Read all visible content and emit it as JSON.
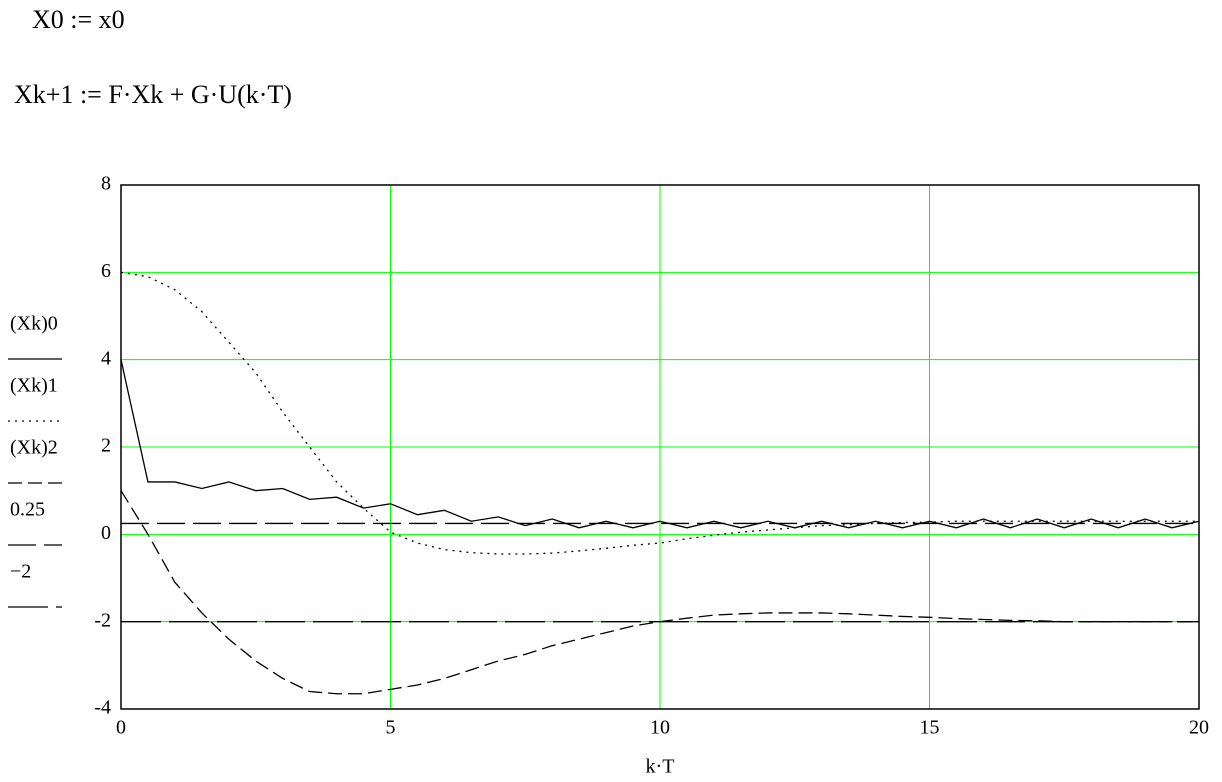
{
  "equations": [
    "X0 := x0",
    "Xk+1 := F·Xk + G·U(k·T)"
  ],
  "chart_data": {
    "type": "line",
    "xlabel": "k·T",
    "x": [
      0,
      0.5,
      1,
      1.5,
      2,
      2.5,
      3,
      3.5,
      4,
      4.5,
      5,
      5.5,
      6,
      6.5,
      7,
      7.5,
      8,
      8.5,
      9,
      9.5,
      10,
      10.5,
      11,
      11.5,
      12,
      12.5,
      13,
      13.5,
      14,
      14.5,
      15,
      15.5,
      16,
      16.5,
      17,
      17.5,
      18,
      18.5,
      19,
      19.5,
      20
    ],
    "xlim": [
      0,
      20
    ],
    "xticks": [
      0,
      5,
      10,
      15,
      20
    ],
    "ylim": [
      -4,
      8
    ],
    "yticks": [
      -4,
      -2,
      0,
      2,
      4,
      6,
      8
    ],
    "grid": true,
    "grid_color": "#00ff00",
    "series": [
      {
        "name": "(Xk)0",
        "color": "#000000",
        "dash": "none",
        "values": [
          4,
          1.2,
          1.2,
          1.05,
          1.2,
          1.0,
          1.05,
          0.8,
          0.85,
          0.6,
          0.7,
          0.45,
          0.55,
          0.3,
          0.4,
          0.2,
          0.35,
          0.15,
          0.3,
          0.15,
          0.3,
          0.15,
          0.3,
          0.15,
          0.3,
          0.15,
          0.3,
          0.15,
          0.3,
          0.15,
          0.3,
          0.15,
          0.35,
          0.15,
          0.35,
          0.15,
          0.35,
          0.15,
          0.35,
          0.15,
          0.3
        ]
      },
      {
        "name": "(Xk)1",
        "color": "#000000",
        "dash": "2,5",
        "values": [
          6,
          5.9,
          5.6,
          5.1,
          4.4,
          3.7,
          2.8,
          2.0,
          1.2,
          0.6,
          0.05,
          -0.2,
          -0.35,
          -0.42,
          -0.45,
          -0.45,
          -0.43,
          -0.38,
          -0.32,
          -0.25,
          -0.2,
          -0.1,
          -0.02,
          0.05,
          0.1,
          0.15,
          0.2,
          0.22,
          0.25,
          0.27,
          0.28,
          0.3,
          0.3,
          0.3,
          0.3,
          0.3,
          0.3,
          0.3,
          0.3,
          0.3,
          0.3
        ]
      },
      {
        "name": "(Xk)2",
        "color": "#000000",
        "dash": "14,6",
        "values": [
          1,
          0,
          -1.1,
          -1.8,
          -2.4,
          -2.9,
          -3.3,
          -3.6,
          -3.65,
          -3.65,
          -3.55,
          -3.45,
          -3.3,
          -3.1,
          -2.9,
          -2.75,
          -2.55,
          -2.4,
          -2.25,
          -2.1,
          -2.0,
          -1.92,
          -1.85,
          -1.82,
          -1.8,
          -1.8,
          -1.8,
          -1.82,
          -1.85,
          -1.88,
          -1.9,
          -1.93,
          -1.95,
          -1.97,
          -1.98,
          -2.0,
          -2.0,
          -2.0,
          -2.0,
          -2.0,
          -2.0
        ]
      },
      {
        "name": "0.25",
        "color": "#000000",
        "dash": "28,8",
        "values": [
          0.25,
          0.25,
          0.25,
          0.25,
          0.25,
          0.25,
          0.25,
          0.25,
          0.25,
          0.25,
          0.25,
          0.25,
          0.25,
          0.25,
          0.25,
          0.25,
          0.25,
          0.25,
          0.25,
          0.25,
          0.25,
          0.25,
          0.25,
          0.25,
          0.25,
          0.25,
          0.25,
          0.25,
          0.25,
          0.25,
          0.25,
          0.25,
          0.25,
          0.25,
          0.25,
          0.25,
          0.25,
          0.25,
          0.25,
          0.25,
          0.25
        ]
      },
      {
        "name": "−2",
        "color": "#000000",
        "dash": "40,8",
        "values": [
          -2,
          -2,
          -2,
          -2,
          -2,
          -2,
          -2,
          -2,
          -2,
          -2,
          -2,
          -2,
          -2,
          -2,
          -2,
          -2,
          -2,
          -2,
          -2,
          -2,
          -2,
          -2,
          -2,
          -2,
          -2,
          -2,
          -2,
          -2,
          -2,
          -2,
          -2,
          -2,
          -2,
          -2,
          -2,
          -2,
          -2,
          -2,
          -2,
          -2,
          -2
        ]
      }
    ]
  }
}
